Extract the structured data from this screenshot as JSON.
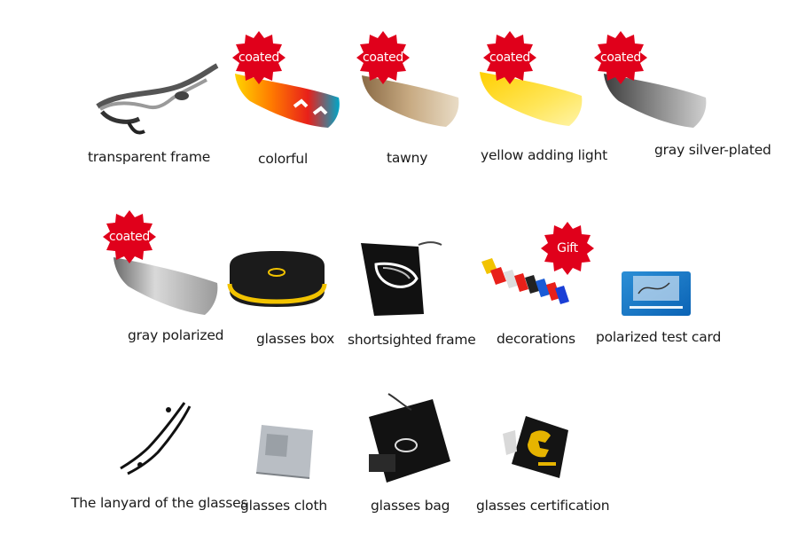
{
  "badges": {
    "coated": "coated",
    "gift": "Gift"
  },
  "colors": {
    "badge_red": "#e0001b",
    "frame_black": "#1b1b1b",
    "box_yellow": "#f2c300"
  },
  "items": {
    "transparent_frame": "transparent frame",
    "colorful": "colorful",
    "tawny": "tawny",
    "yellow_adding_light": "yellow adding light",
    "gray_silver_plated": "gray silver-plated",
    "gray_polarized": "gray polarized",
    "glasses_box": "glasses box",
    "shortsighted_frame": "shortsighted frame",
    "decorations": "decorations",
    "polarized_test_card": "polarized test card",
    "lanyard": "The lanyard of the glasses",
    "glasses_cloth": "glasses cloth",
    "glasses_bag": "glasses bag",
    "glasses_certification": "glasses certification"
  }
}
